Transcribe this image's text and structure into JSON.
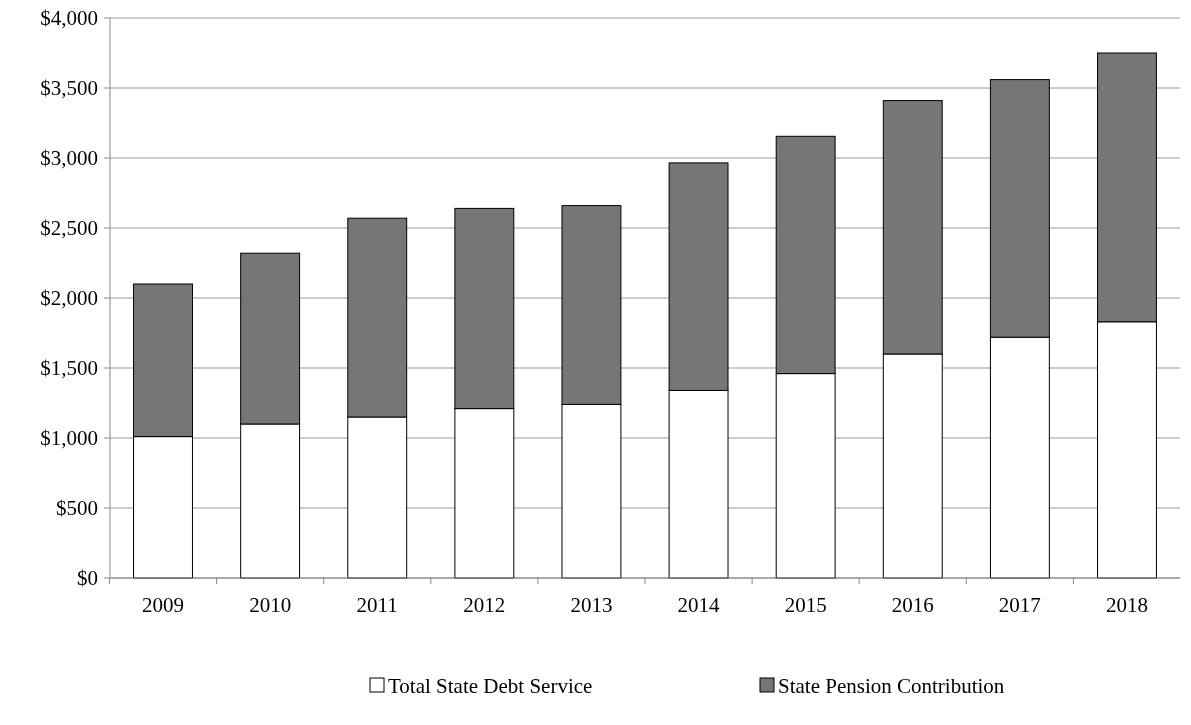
{
  "chart_data": {
    "type": "bar",
    "stacked": true,
    "categories": [
      "2009",
      "2010",
      "2011",
      "2012",
      "2013",
      "2014",
      "2015",
      "2016",
      "2017",
      "2018"
    ],
    "series": [
      {
        "name": "Total State Debt Service",
        "color": "#ffffff",
        "values": [
          1010,
          1100,
          1150,
          1210,
          1240,
          1340,
          1460,
          1600,
          1720,
          1830
        ]
      },
      {
        "name": "State Pension Contribution",
        "color": "#767676",
        "values": [
          1090,
          1220,
          1420,
          1430,
          1420,
          1625,
          1695,
          1810,
          1840,
          1920
        ]
      }
    ],
    "ylim": [
      0,
      4000
    ],
    "yticks": [
      {
        "value": 0,
        "label": "$0"
      },
      {
        "value": 500,
        "label": "$500"
      },
      {
        "value": 1000,
        "label": "$1,000"
      },
      {
        "value": 1500,
        "label": "$1,500"
      },
      {
        "value": 2000,
        "label": "$2,000"
      },
      {
        "value": 2500,
        "label": "$2,500"
      },
      {
        "value": 3000,
        "label": "$3,000"
      },
      {
        "value": 3500,
        "label": "$3,500"
      },
      {
        "value": 4000,
        "label": "$4,000"
      }
    ],
    "grid": "y",
    "legend": "bottom"
  }
}
